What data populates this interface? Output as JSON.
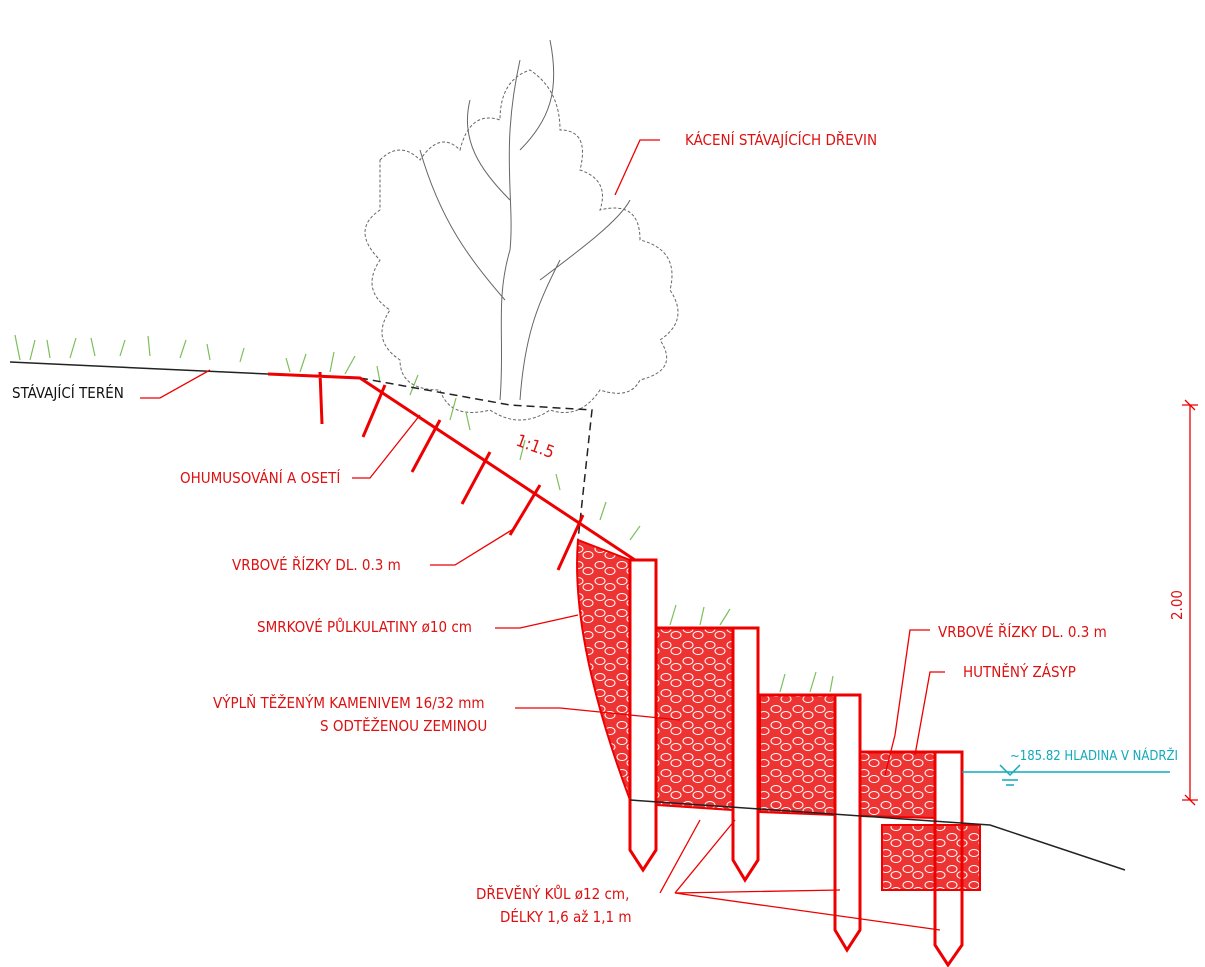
{
  "labels": [
    {
      "text": "KÁCENÍ STÁVAJÍCÍCH DŘEVIN"
    },
    {
      "text": "STÁVAJÍCÍ TERÉN"
    },
    {
      "text": "OHUMUSOVÁNÍ A OSETÍ"
    },
    {
      "text": "1:1.5"
    },
    {
      "text": "VRBOVÉ ŘÍZKY DL. 0.3 m"
    },
    {
      "text": "SMRKOVÉ PŮLKULATINY ø10 cm"
    },
    {
      "lines": [
        "VÝPLŇ TĚŽENÝM KAMENIVEM 16/32 mm",
        "S ODTĚŽENOU ZEMINOU"
      ]
    },
    {
      "lines": [
        "DŘEVĚNÝ KŮL ø12 cm,",
        "DÉLKY 1,6 až 1,1 m"
      ]
    },
    {
      "text": "VRBOVÉ ŘÍZKY DL. 0.3 m"
    },
    {
      "text": "HUTNĚNÝ ZÁSYP"
    },
    {
      "text": "~185.82 HLADINA V NÁDRŽI"
    },
    {
      "text": "2.00"
    }
  ]
}
